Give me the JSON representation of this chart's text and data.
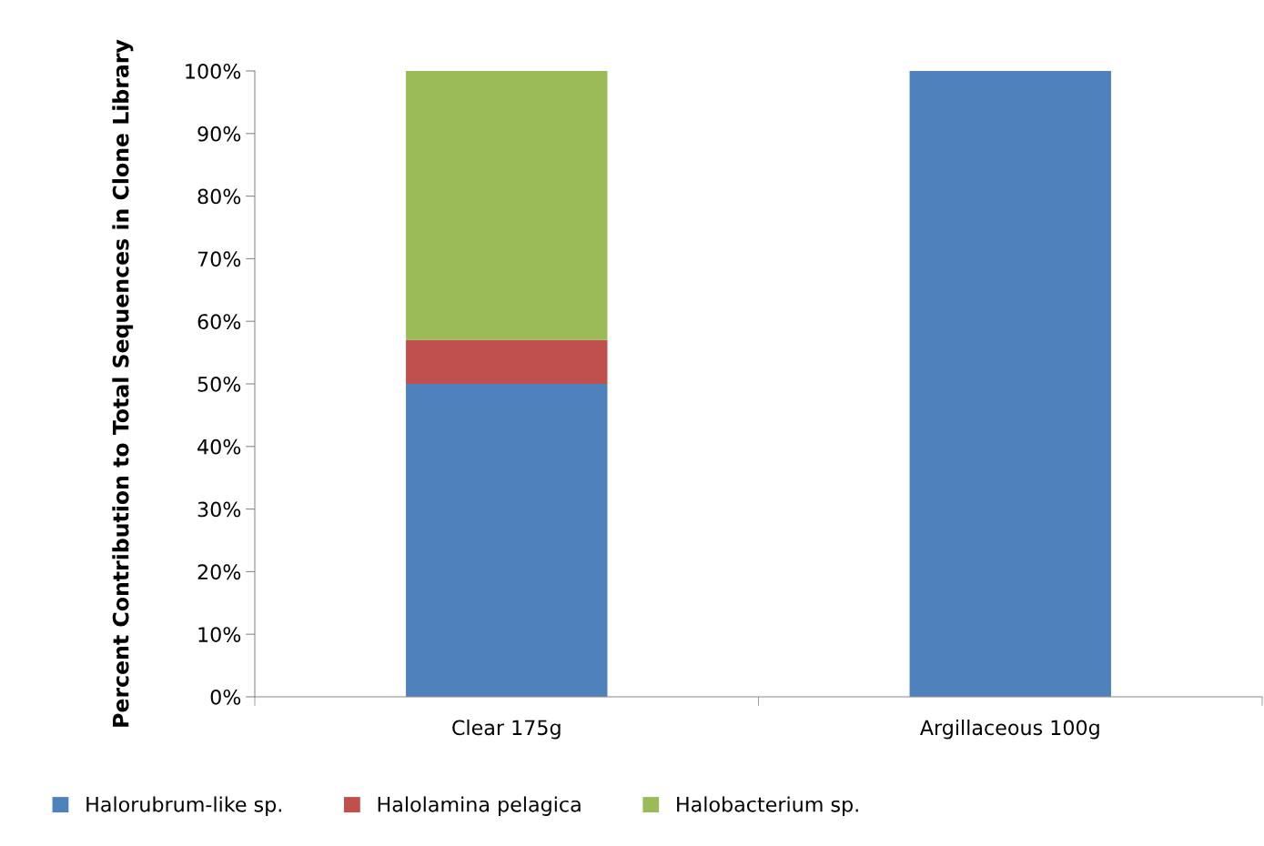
{
  "chart_data": {
    "type": "bar",
    "stacked": true,
    "ylabel": "Percent Contribution to Total Sequences in Clone Library",
    "categories": [
      "Clear 175g",
      "Argillaceous 100g"
    ],
    "series": [
      {
        "name": "Halorubrum-like sp.",
        "color": "#4f81bd",
        "values": [
          50,
          100
        ]
      },
      {
        "name": "Halolamina pelagica",
        "color": "#c0504d",
        "values": [
          7,
          0
        ]
      },
      {
        "name": "Halobacterium sp.",
        "color": "#9bbb59",
        "values": [
          43,
          0
        ]
      }
    ],
    "ylim": [
      0,
      100
    ],
    "yticks": [
      {
        "value": 0,
        "label": "0%"
      },
      {
        "value": 10,
        "label": "10%"
      },
      {
        "value": 20,
        "label": "20%"
      },
      {
        "value": 30,
        "label": "30%"
      },
      {
        "value": 40,
        "label": "40%"
      },
      {
        "value": 50,
        "label": "50%"
      },
      {
        "value": 60,
        "label": "60%"
      },
      {
        "value": 70,
        "label": "70%"
      },
      {
        "value": 80,
        "label": "80%"
      },
      {
        "value": 90,
        "label": "90%"
      },
      {
        "value": 100,
        "label": "100%"
      }
    ],
    "grid": false,
    "legend": "bottom"
  }
}
